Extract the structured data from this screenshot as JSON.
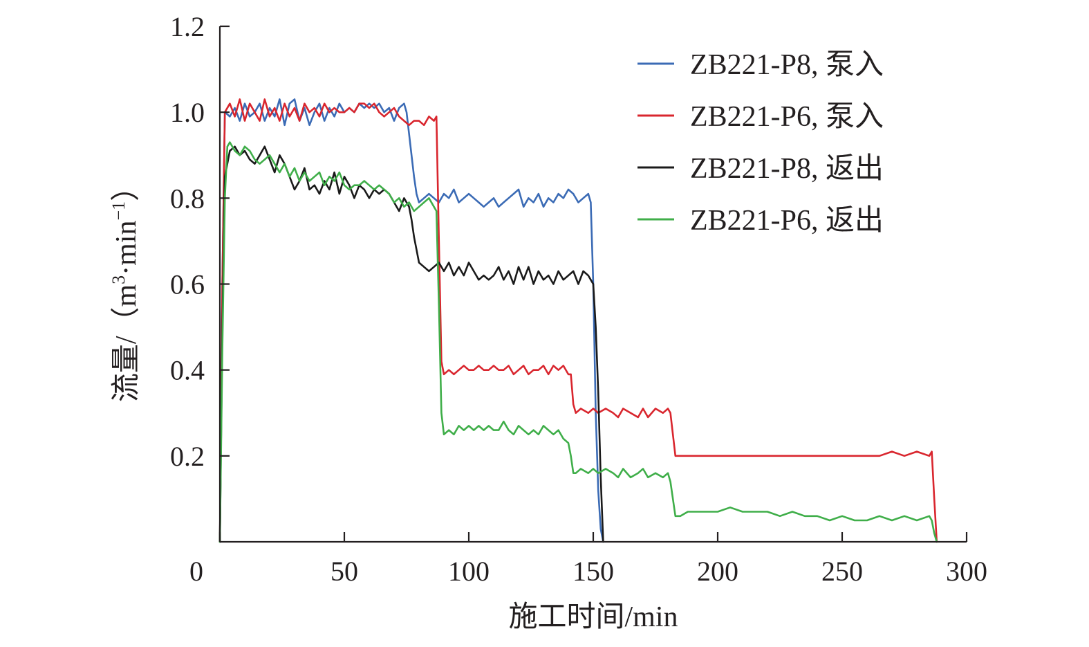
{
  "chart_data": {
    "type": "line",
    "xlabel": "施工时间/min",
    "ylabel": "流量/（m³·min⁻¹）",
    "ylabel_parts": {
      "prefix": "流量/（m",
      "sup1": "3",
      "middle": "·min",
      "sup2": "−1",
      "suffix": "）"
    },
    "xlim": [
      0,
      300
    ],
    "ylim": [
      0,
      1.2
    ],
    "xticks": [
      0,
      50,
      100,
      150,
      200,
      250,
      300
    ],
    "xtick_labels": [
      "0",
      "50",
      "100",
      "150",
      "200",
      "250",
      "300"
    ],
    "yticks": [
      0.2,
      0.4,
      0.6,
      0.8,
      1.0,
      1.2
    ],
    "ytick_labels": [
      "0.2",
      "0.4",
      "0.6",
      "0.8",
      "1.0",
      "1.2"
    ],
    "grid": false,
    "legend_position": "top-right",
    "series": [
      {
        "name": "ZB221-P8, 泵入",
        "color": "#3b6bb5",
        "x": [
          0,
          1,
          2,
          4,
          6,
          8,
          10,
          12,
          14,
          16,
          18,
          20,
          22,
          24,
          26,
          28,
          30,
          32,
          34,
          36,
          38,
          40,
          42,
          44,
          46,
          48,
          50,
          52,
          54,
          56,
          58,
          60,
          62,
          64,
          66,
          68,
          70,
          72,
          74,
          75,
          76,
          77,
          78,
          79,
          80,
          82,
          84,
          86,
          88,
          90,
          92,
          94,
          96,
          98,
          100,
          102,
          104,
          106,
          108,
          110,
          112,
          114,
          116,
          118,
          120,
          122,
          124,
          126,
          128,
          130,
          132,
          134,
          136,
          138,
          140,
          142,
          144,
          146,
          148,
          149,
          150,
          151,
          152,
          153,
          154
        ],
        "y": [
          0,
          0.6,
          1.0,
          0.99,
          1.01,
          0.98,
          1.02,
          0.99,
          1.0,
          1.02,
          0.98,
          1.01,
          0.99,
          1.03,
          0.97,
          1.02,
          1.03,
          0.98,
          1.01,
          0.97,
          1.0,
          1.02,
          0.98,
          1.01,
          0.99,
          1.02,
          1.0,
          1.01,
          1.0,
          1.02,
          1.01,
          1.02,
          1.01,
          1.02,
          1.0,
          1.01,
          0.98,
          1.01,
          1.02,
          1.0,
          0.95,
          0.9,
          0.85,
          0.81,
          0.79,
          0.8,
          0.81,
          0.8,
          0.79,
          0.81,
          0.8,
          0.82,
          0.79,
          0.8,
          0.81,
          0.8,
          0.79,
          0.78,
          0.79,
          0.8,
          0.78,
          0.79,
          0.8,
          0.81,
          0.82,
          0.78,
          0.8,
          0.79,
          0.81,
          0.78,
          0.8,
          0.79,
          0.81,
          0.8,
          0.82,
          0.81,
          0.79,
          0.8,
          0.81,
          0.79,
          0.6,
          0.3,
          0.12,
          0.03,
          0
        ]
      },
      {
        "name": "ZB221-P6, 泵入",
        "color": "#d9262e",
        "x": [
          0,
          1,
          2,
          4,
          6,
          8,
          10,
          12,
          14,
          16,
          18,
          20,
          22,
          24,
          26,
          28,
          30,
          32,
          34,
          36,
          38,
          40,
          42,
          44,
          46,
          48,
          50,
          52,
          54,
          56,
          58,
          60,
          62,
          64,
          66,
          68,
          70,
          72,
          74,
          76,
          78,
          80,
          82,
          84,
          86,
          87,
          88,
          89,
          90,
          92,
          94,
          96,
          98,
          100,
          102,
          104,
          106,
          108,
          110,
          112,
          114,
          116,
          118,
          120,
          122,
          124,
          126,
          128,
          130,
          132,
          134,
          136,
          138,
          140,
          141,
          142,
          143,
          145,
          148,
          150,
          152,
          155,
          158,
          160,
          162,
          165,
          168,
          170,
          172,
          175,
          178,
          180,
          181,
          182,
          183,
          185,
          188,
          190,
          195,
          200,
          205,
          210,
          215,
          220,
          225,
          230,
          235,
          240,
          245,
          250,
          255,
          260,
          265,
          270,
          275,
          280,
          285,
          286,
          287,
          288
        ],
        "y": [
          0,
          0.6,
          1.0,
          1.02,
          0.99,
          1.03,
          0.98,
          1.02,
          1.0,
          0.98,
          1.03,
          0.99,
          1.01,
          0.98,
          1.02,
          0.99,
          1.01,
          0.98,
          1.02,
          1.0,
          1.01,
          0.99,
          1.02,
          1.0,
          1.01,
          1.0,
          1.0,
          1.01,
          1.0,
          1.02,
          1.02,
          1.01,
          1.02,
          1.0,
          0.99,
          1.0,
          1.01,
          0.99,
          0.98,
          0.97,
          0.98,
          0.98,
          0.97,
          0.99,
          0.98,
          0.99,
          0.7,
          0.42,
          0.39,
          0.4,
          0.39,
          0.4,
          0.41,
          0.4,
          0.4,
          0.41,
          0.4,
          0.4,
          0.41,
          0.4,
          0.4,
          0.41,
          0.39,
          0.4,
          0.41,
          0.39,
          0.4,
          0.4,
          0.41,
          0.39,
          0.41,
          0.4,
          0.41,
          0.39,
          0.39,
          0.32,
          0.3,
          0.31,
          0.3,
          0.31,
          0.3,
          0.31,
          0.3,
          0.29,
          0.31,
          0.3,
          0.29,
          0.31,
          0.29,
          0.31,
          0.3,
          0.31,
          0.3,
          0.25,
          0.2,
          0.2,
          0.2,
          0.2,
          0.2,
          0.2,
          0.2,
          0.2,
          0.2,
          0.2,
          0.2,
          0.2,
          0.2,
          0.2,
          0.2,
          0.2,
          0.2,
          0.2,
          0.2,
          0.21,
          0.2,
          0.21,
          0.2,
          0.21,
          0.1,
          0
        ]
      },
      {
        "name": "ZB221-P8, 返出",
        "color": "#1a1a1a",
        "x": [
          0,
          1,
          2,
          4,
          6,
          8,
          10,
          12,
          14,
          16,
          18,
          20,
          22,
          24,
          26,
          28,
          30,
          32,
          34,
          36,
          38,
          40,
          42,
          44,
          46,
          48,
          50,
          52,
          54,
          56,
          58,
          60,
          62,
          64,
          66,
          68,
          70,
          72,
          74,
          75,
          76,
          77,
          78,
          79,
          80,
          82,
          84,
          86,
          88,
          90,
          92,
          94,
          96,
          98,
          100,
          102,
          104,
          106,
          108,
          110,
          112,
          114,
          116,
          118,
          120,
          122,
          124,
          126,
          128,
          130,
          132,
          134,
          136,
          138,
          140,
          142,
          144,
          146,
          148,
          149,
          150,
          151,
          152,
          153,
          154
        ],
        "y": [
          0,
          0.5,
          0.85,
          0.91,
          0.92,
          0.9,
          0.91,
          0.89,
          0.88,
          0.9,
          0.92,
          0.89,
          0.86,
          0.9,
          0.88,
          0.85,
          0.82,
          0.84,
          0.87,
          0.82,
          0.83,
          0.81,
          0.84,
          0.82,
          0.86,
          0.81,
          0.85,
          0.83,
          0.8,
          0.83,
          0.82,
          0.8,
          0.82,
          0.81,
          0.82,
          0.81,
          0.79,
          0.77,
          0.8,
          0.79,
          0.78,
          0.75,
          0.71,
          0.68,
          0.65,
          0.64,
          0.63,
          0.64,
          0.65,
          0.63,
          0.65,
          0.62,
          0.64,
          0.62,
          0.65,
          0.63,
          0.61,
          0.62,
          0.61,
          0.62,
          0.64,
          0.61,
          0.63,
          0.6,
          0.64,
          0.61,
          0.64,
          0.6,
          0.63,
          0.61,
          0.62,
          0.6,
          0.63,
          0.61,
          0.62,
          0.63,
          0.6,
          0.63,
          0.62,
          0.61,
          0.6,
          0.5,
          0.35,
          0.15,
          0
        ]
      },
      {
        "name": "ZB221-P6, 返出",
        "color": "#3fae49",
        "x": [
          0,
          1,
          2,
          3,
          4,
          6,
          8,
          10,
          12,
          14,
          16,
          18,
          20,
          22,
          24,
          26,
          28,
          30,
          32,
          34,
          36,
          38,
          40,
          42,
          44,
          46,
          48,
          50,
          52,
          54,
          56,
          58,
          60,
          62,
          64,
          66,
          68,
          70,
          72,
          74,
          76,
          78,
          80,
          82,
          84,
          86,
          87,
          88,
          89,
          90,
          92,
          94,
          96,
          98,
          100,
          102,
          104,
          106,
          108,
          110,
          112,
          114,
          116,
          118,
          120,
          122,
          124,
          126,
          128,
          130,
          132,
          134,
          136,
          138,
          140,
          141,
          142,
          143,
          145,
          148,
          150,
          152,
          155,
          158,
          160,
          162,
          165,
          168,
          170,
          172,
          175,
          178,
          180,
          181,
          182,
          183,
          185,
          188,
          190,
          195,
          200,
          205,
          210,
          215,
          220,
          225,
          230,
          235,
          240,
          245,
          250,
          255,
          260,
          265,
          270,
          275,
          280,
          285,
          286,
          287,
          288
        ],
        "y": [
          0,
          0.45,
          0.8,
          0.92,
          0.93,
          0.91,
          0.9,
          0.92,
          0.91,
          0.89,
          0.88,
          0.89,
          0.9,
          0.88,
          0.86,
          0.88,
          0.85,
          0.87,
          0.84,
          0.86,
          0.84,
          0.85,
          0.86,
          0.83,
          0.85,
          0.84,
          0.86,
          0.83,
          0.82,
          0.83,
          0.83,
          0.84,
          0.83,
          0.82,
          0.83,
          0.82,
          0.81,
          0.79,
          0.8,
          0.78,
          0.79,
          0.77,
          0.78,
          0.79,
          0.8,
          0.78,
          0.77,
          0.55,
          0.3,
          0.25,
          0.26,
          0.25,
          0.27,
          0.26,
          0.27,
          0.26,
          0.27,
          0.26,
          0.27,
          0.26,
          0.26,
          0.28,
          0.26,
          0.25,
          0.27,
          0.26,
          0.25,
          0.26,
          0.25,
          0.27,
          0.26,
          0.25,
          0.26,
          0.24,
          0.23,
          0.2,
          0.16,
          0.16,
          0.17,
          0.16,
          0.17,
          0.16,
          0.17,
          0.16,
          0.15,
          0.17,
          0.15,
          0.16,
          0.17,
          0.15,
          0.16,
          0.15,
          0.16,
          0.14,
          0.1,
          0.06,
          0.06,
          0.07,
          0.07,
          0.07,
          0.07,
          0.08,
          0.07,
          0.07,
          0.07,
          0.06,
          0.07,
          0.06,
          0.06,
          0.05,
          0.06,
          0.05,
          0.05,
          0.06,
          0.05,
          0.06,
          0.05,
          0.06,
          0.05,
          0.02,
          0
        ]
      }
    ]
  }
}
